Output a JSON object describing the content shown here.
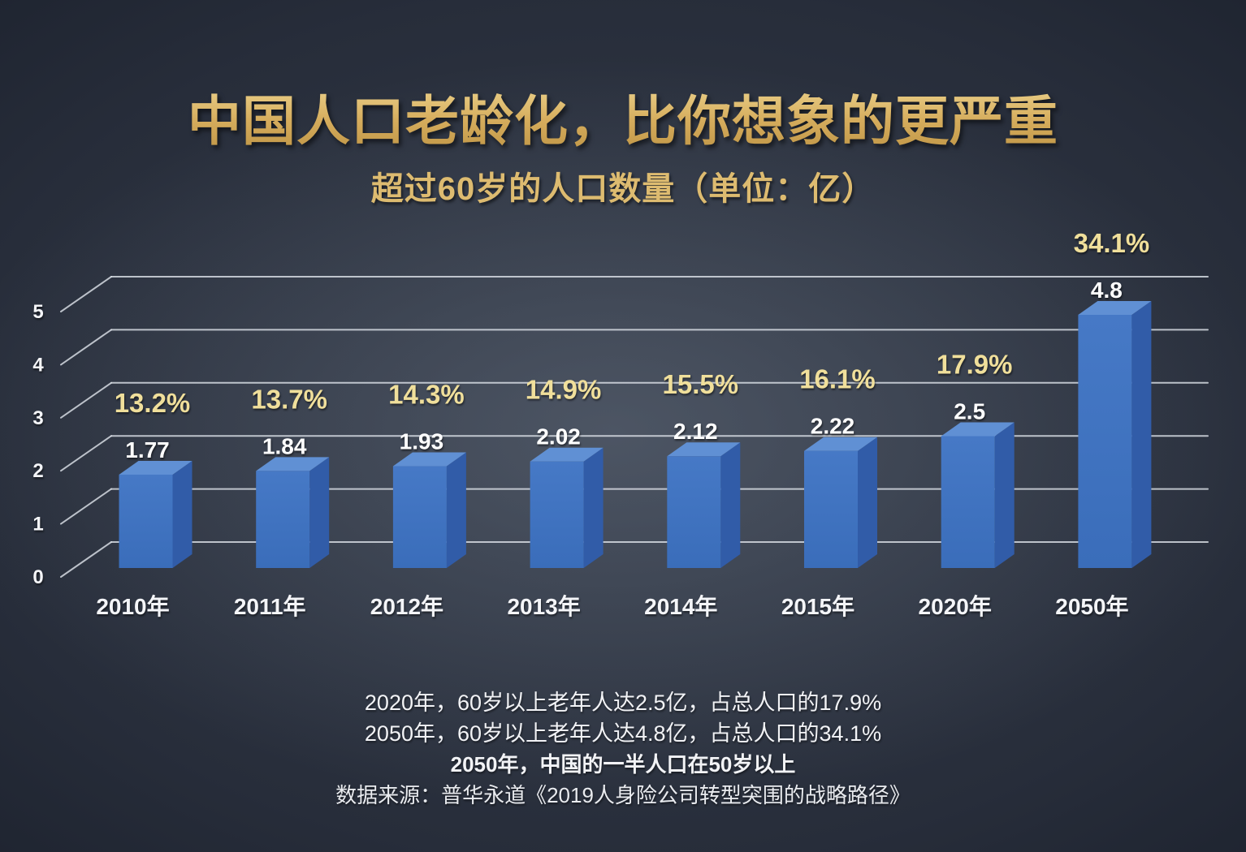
{
  "page": {
    "title": "中国人口老龄化，比你想象的更严重",
    "subtitle": "超过60岁的人口数量（单位：亿）"
  },
  "chart_data": {
    "type": "bar",
    "variant": "3d-column",
    "title": "超过60岁的人口数量",
    "unit": "亿",
    "categories": [
      "2010年",
      "2011年",
      "2012年",
      "2013年",
      "2014年",
      "2015年",
      "2020年",
      "2050年"
    ],
    "values": [
      1.77,
      1.84,
      1.93,
      2.02,
      2.12,
      2.22,
      2.5,
      4.8
    ],
    "percent_labels": [
      "13.2%",
      "13.7%",
      "14.3%",
      "14.9%",
      "15.5%",
      "16.1%",
      "17.9%",
      "34.1%"
    ],
    "y_ticks": [
      0,
      1,
      2,
      3,
      4,
      5
    ],
    "ylim": [
      0,
      5
    ],
    "grid": true,
    "legend": false,
    "colors": {
      "bar_front": "#4679c6",
      "bar_front_dark": "#3a6dba",
      "bar_top": "#6090d4",
      "bar_side": "#315ca8",
      "grid_line": "#dce1e8",
      "axis_label": "#f4f5f8",
      "value_label": "#ffffff",
      "percent_label": "#f0df9b",
      "title_gold": "#d5ac5c"
    }
  },
  "footnotes": [
    {
      "text": "2020年，60岁以上老年人达2.5亿，占总人口的17.9%"
    },
    {
      "text": "2050年，60岁以上老年人达4.8亿，占总人口的34.1%"
    },
    {
      "text": "2050年，中国的一半人口在50岁以上"
    },
    {
      "text": "数据来源：普华永道《2019人身险公司转型突围的战略路径》"
    }
  ]
}
